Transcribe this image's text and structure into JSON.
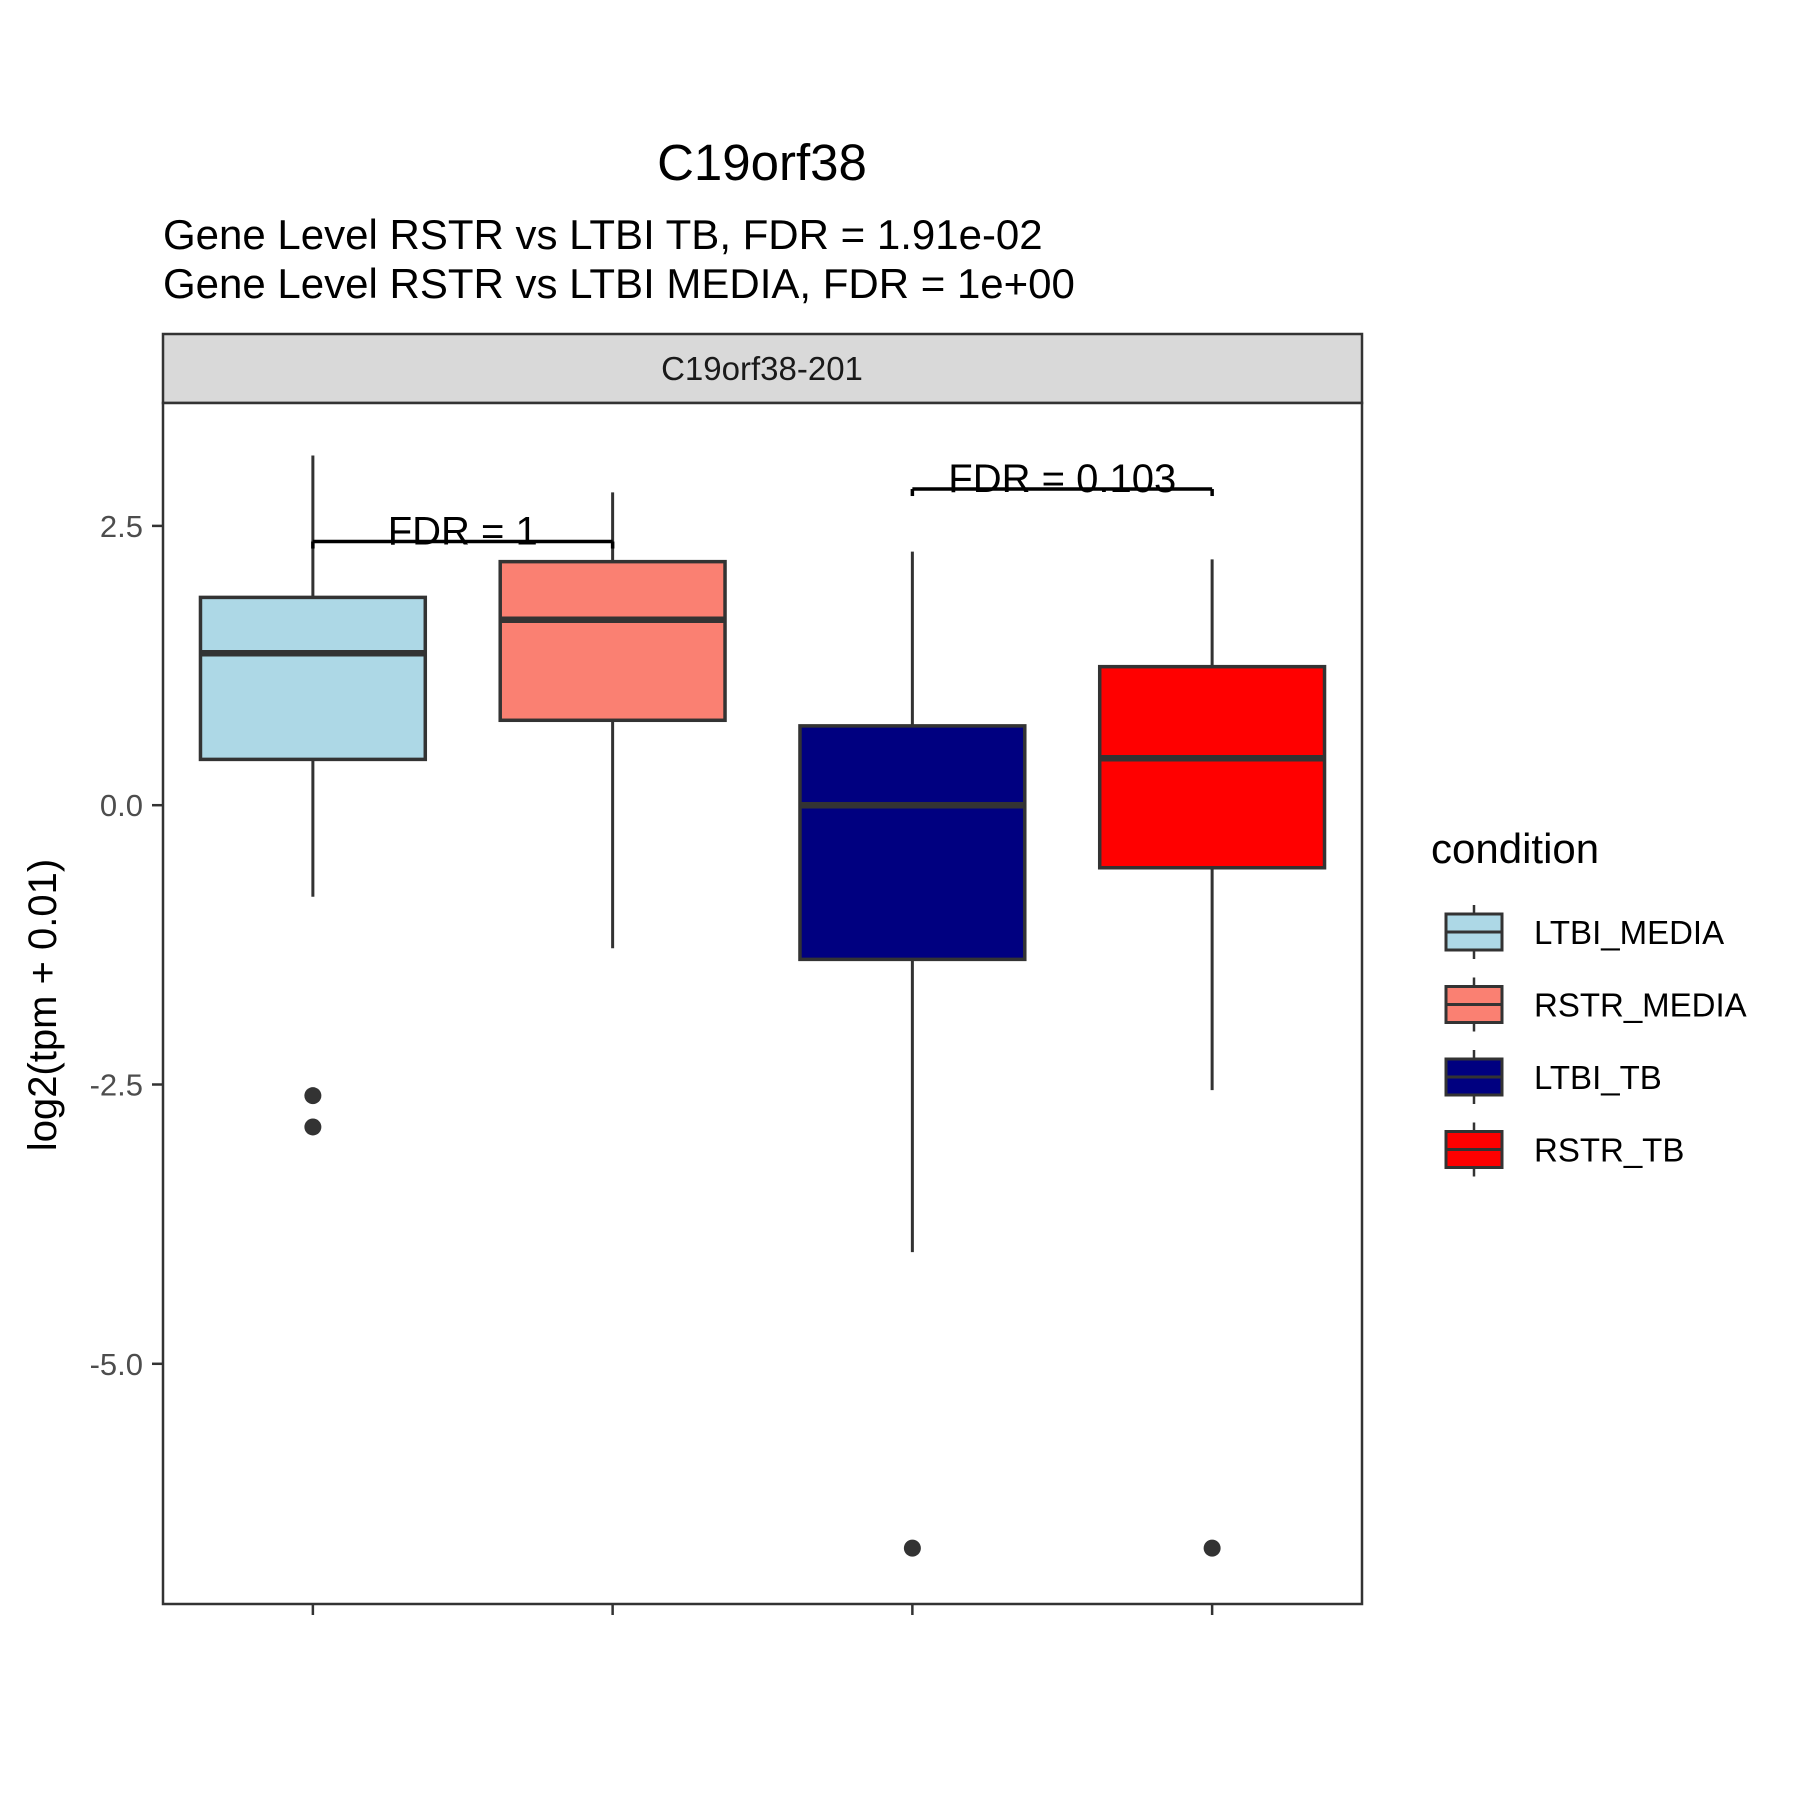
{
  "chart_data": {
    "type": "box",
    "title": "C19orf38",
    "subtitle_lines": [
      "Gene Level RSTR vs LTBI TB, FDR =  1.91e-02",
      "Gene Level RSTR vs LTBI MEDIA, FDR =  1e+00"
    ],
    "facet_label": "C19orf38-201",
    "ylabel": "log2(tpm + 0.01)",
    "ylim": [
      -7.15,
      3.6
    ],
    "y_ticks": [
      2.5,
      0.0,
      -2.5,
      -5.0
    ],
    "y_tick_labels": [
      "2.5",
      "0.0",
      "-2.5",
      "-5.0"
    ],
    "grid": false,
    "legend": {
      "title": "condition",
      "position": "right"
    },
    "series": [
      {
        "name": "LTBI_MEDIA",
        "color": "#ADD8E6",
        "whisker_low": -0.82,
        "q1": 0.41,
        "median": 1.36,
        "q3": 1.86,
        "whisker_high": 3.13,
        "outliers": [
          -2.6,
          -2.88
        ]
      },
      {
        "name": "RSTR_MEDIA",
        "color": "#FA8072",
        "whisker_low": -1.28,
        "q1": 0.76,
        "median": 1.66,
        "q3": 2.18,
        "whisker_high": 2.8,
        "outliers": []
      },
      {
        "name": "LTBI_TB",
        "color": "#000080",
        "whisker_low": -4.0,
        "q1": -1.38,
        "median": 0.0,
        "q3": 0.71,
        "whisker_high": 2.27,
        "outliers": [
          -6.65
        ]
      },
      {
        "name": "RSTR_TB",
        "color": "#FF0000",
        "whisker_low": -2.55,
        "q1": -0.56,
        "median": 0.42,
        "q3": 1.24,
        "whisker_high": 2.2,
        "outliers": [
          -6.65
        ]
      }
    ],
    "annotations": [
      {
        "text": "FDR =  1",
        "from": 0,
        "to": 1,
        "y": 2.36
      },
      {
        "text": "FDR =  0.103",
        "from": 2,
        "to": 3,
        "y": 2.83
      }
    ]
  }
}
